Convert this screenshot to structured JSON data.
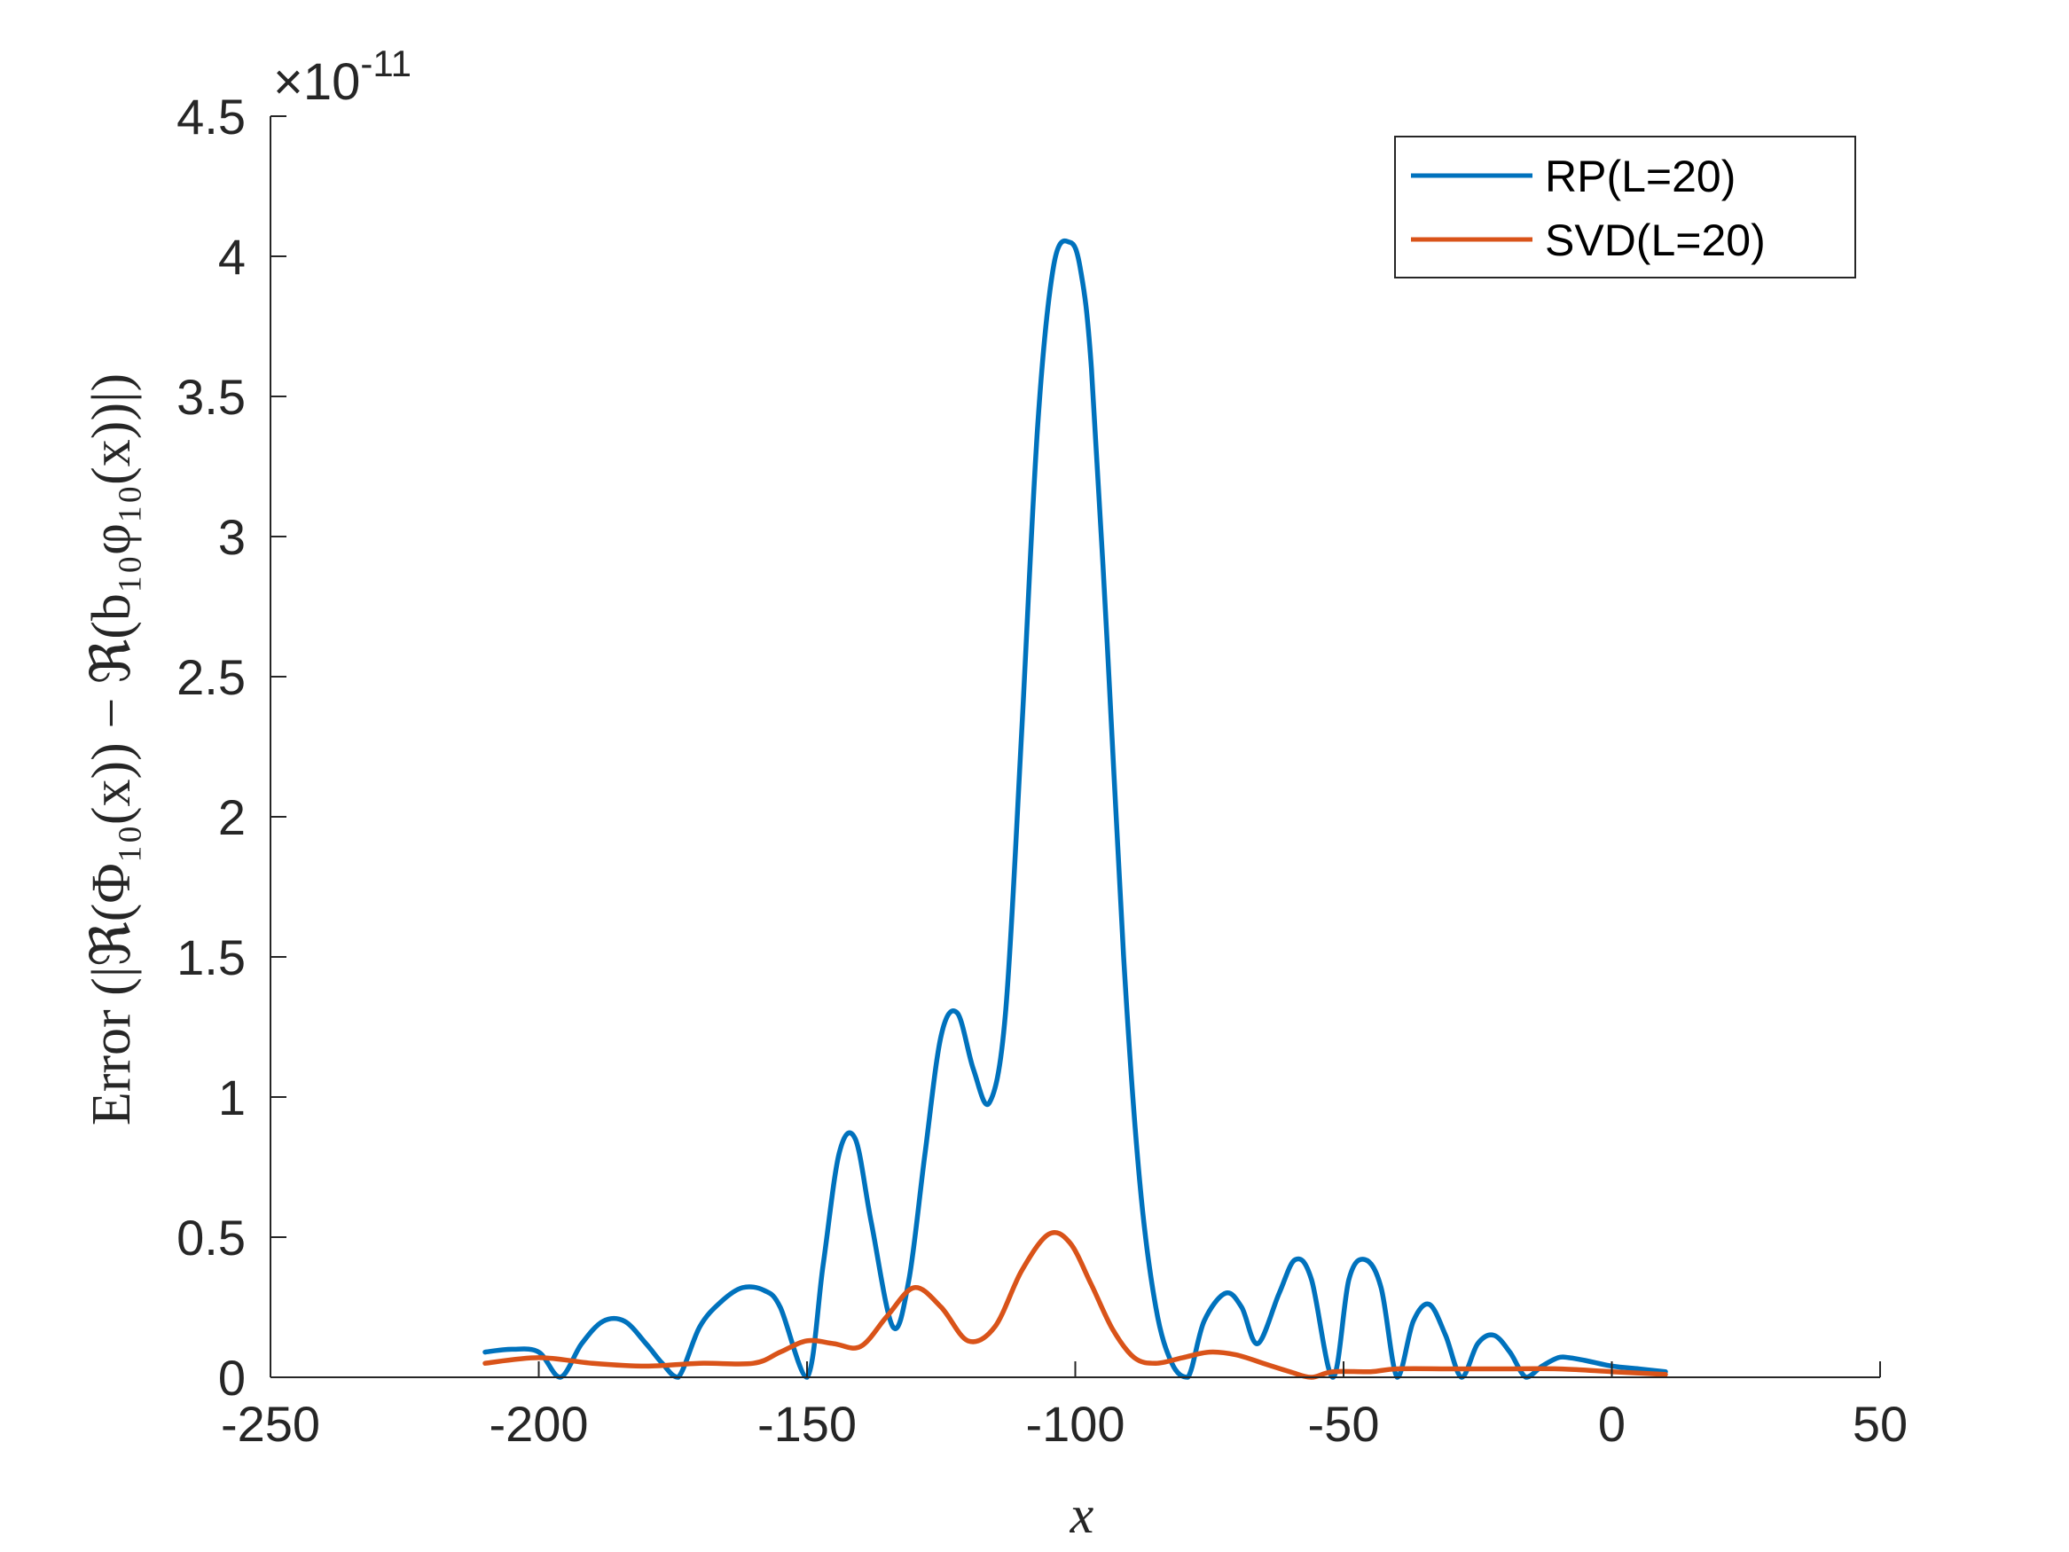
{
  "chart_data": {
    "type": "line",
    "xlabel": "x",
    "ylabel": "Error  (|ℜ(Φ₁₀(x)) − ℜ(b₁₀φ₁₀(x))|)",
    "xlim": [
      -250,
      50
    ],
    "ylim": [
      0,
      4.5
    ],
    "y_exponent_label": "×10",
    "y_exponent_power": "-11",
    "xticks": [
      "-250",
      "-200",
      "-150",
      "-100",
      "-50",
      "0",
      "50"
    ],
    "yticks": [
      "0",
      "0.5",
      "1",
      "1.5",
      "2",
      "2.5",
      "3",
      "3.5",
      "4",
      "4.5"
    ],
    "grid": false,
    "legend_position": "top-right",
    "colors": {
      "RP": "#0072BD",
      "SVD": "#D95319"
    },
    "series": [
      {
        "name": "RP(L=20)",
        "color": "#0072BD",
        "x": [
          -210,
          -205,
          -200,
          -196,
          -192,
          -188,
          -184,
          -180,
          -177,
          -174,
          -170,
          -166,
          -162,
          -158,
          -155,
          -150,
          -147,
          -144,
          -141,
          -138,
          -134,
          -131,
          -128,
          -125,
          -122,
          -119,
          -116,
          -113,
          -110,
          -107,
          -104,
          -101,
          -99,
          -97,
          -94,
          -91,
          -88,
          -85,
          -82,
          -79,
          -76,
          -72,
          -69,
          -66,
          -62,
          -59,
          -56,
          -52,
          -49,
          -46,
          -43,
          -40,
          -37,
          -34,
          -31,
          -28,
          -25,
          -22,
          -19,
          -16,
          -13,
          -10,
          -8,
          -5,
          0,
          5,
          10
        ],
        "y": [
          0.09,
          0.1,
          0.09,
          0.0,
          0.12,
          0.2,
          0.2,
          0.12,
          0.05,
          0.0,
          0.18,
          0.27,
          0.32,
          0.31,
          0.25,
          0.0,
          0.4,
          0.8,
          0.85,
          0.55,
          0.18,
          0.35,
          0.8,
          1.22,
          1.3,
          1.1,
          0.98,
          1.3,
          2.3,
          3.4,
          3.97,
          4.05,
          3.95,
          3.6,
          2.6,
          1.5,
          0.7,
          0.25,
          0.05,
          0.0,
          0.2,
          0.3,
          0.25,
          0.12,
          0.3,
          0.42,
          0.35,
          0.0,
          0.35,
          0.42,
          0.32,
          0.0,
          0.2,
          0.26,
          0.15,
          0.0,
          0.12,
          0.15,
          0.09,
          0.0,
          0.04,
          0.07,
          0.07,
          0.06,
          0.04,
          0.03,
          0.02
        ]
      },
      {
        "name": "SVD(L=20)",
        "color": "#D95319",
        "x": [
          -210,
          -200,
          -190,
          -180,
          -170,
          -160,
          -155,
          -150,
          -145,
          -140,
          -135,
          -130,
          -125,
          -120,
          -115,
          -110,
          -105,
          -101,
          -97,
          -93,
          -89,
          -85,
          -80,
          -75,
          -70,
          -65,
          -60,
          -56,
          -52,
          -45,
          -40,
          -30,
          -20,
          -10,
          0,
          10
        ],
        "y": [
          0.05,
          0.07,
          0.05,
          0.04,
          0.05,
          0.05,
          0.09,
          0.13,
          0.12,
          0.11,
          0.22,
          0.32,
          0.25,
          0.13,
          0.18,
          0.38,
          0.51,
          0.48,
          0.33,
          0.17,
          0.07,
          0.05,
          0.07,
          0.09,
          0.08,
          0.05,
          0.02,
          0.0,
          0.02,
          0.02,
          0.03,
          0.03,
          0.03,
          0.03,
          0.02,
          0.01
        ]
      }
    ]
  }
}
